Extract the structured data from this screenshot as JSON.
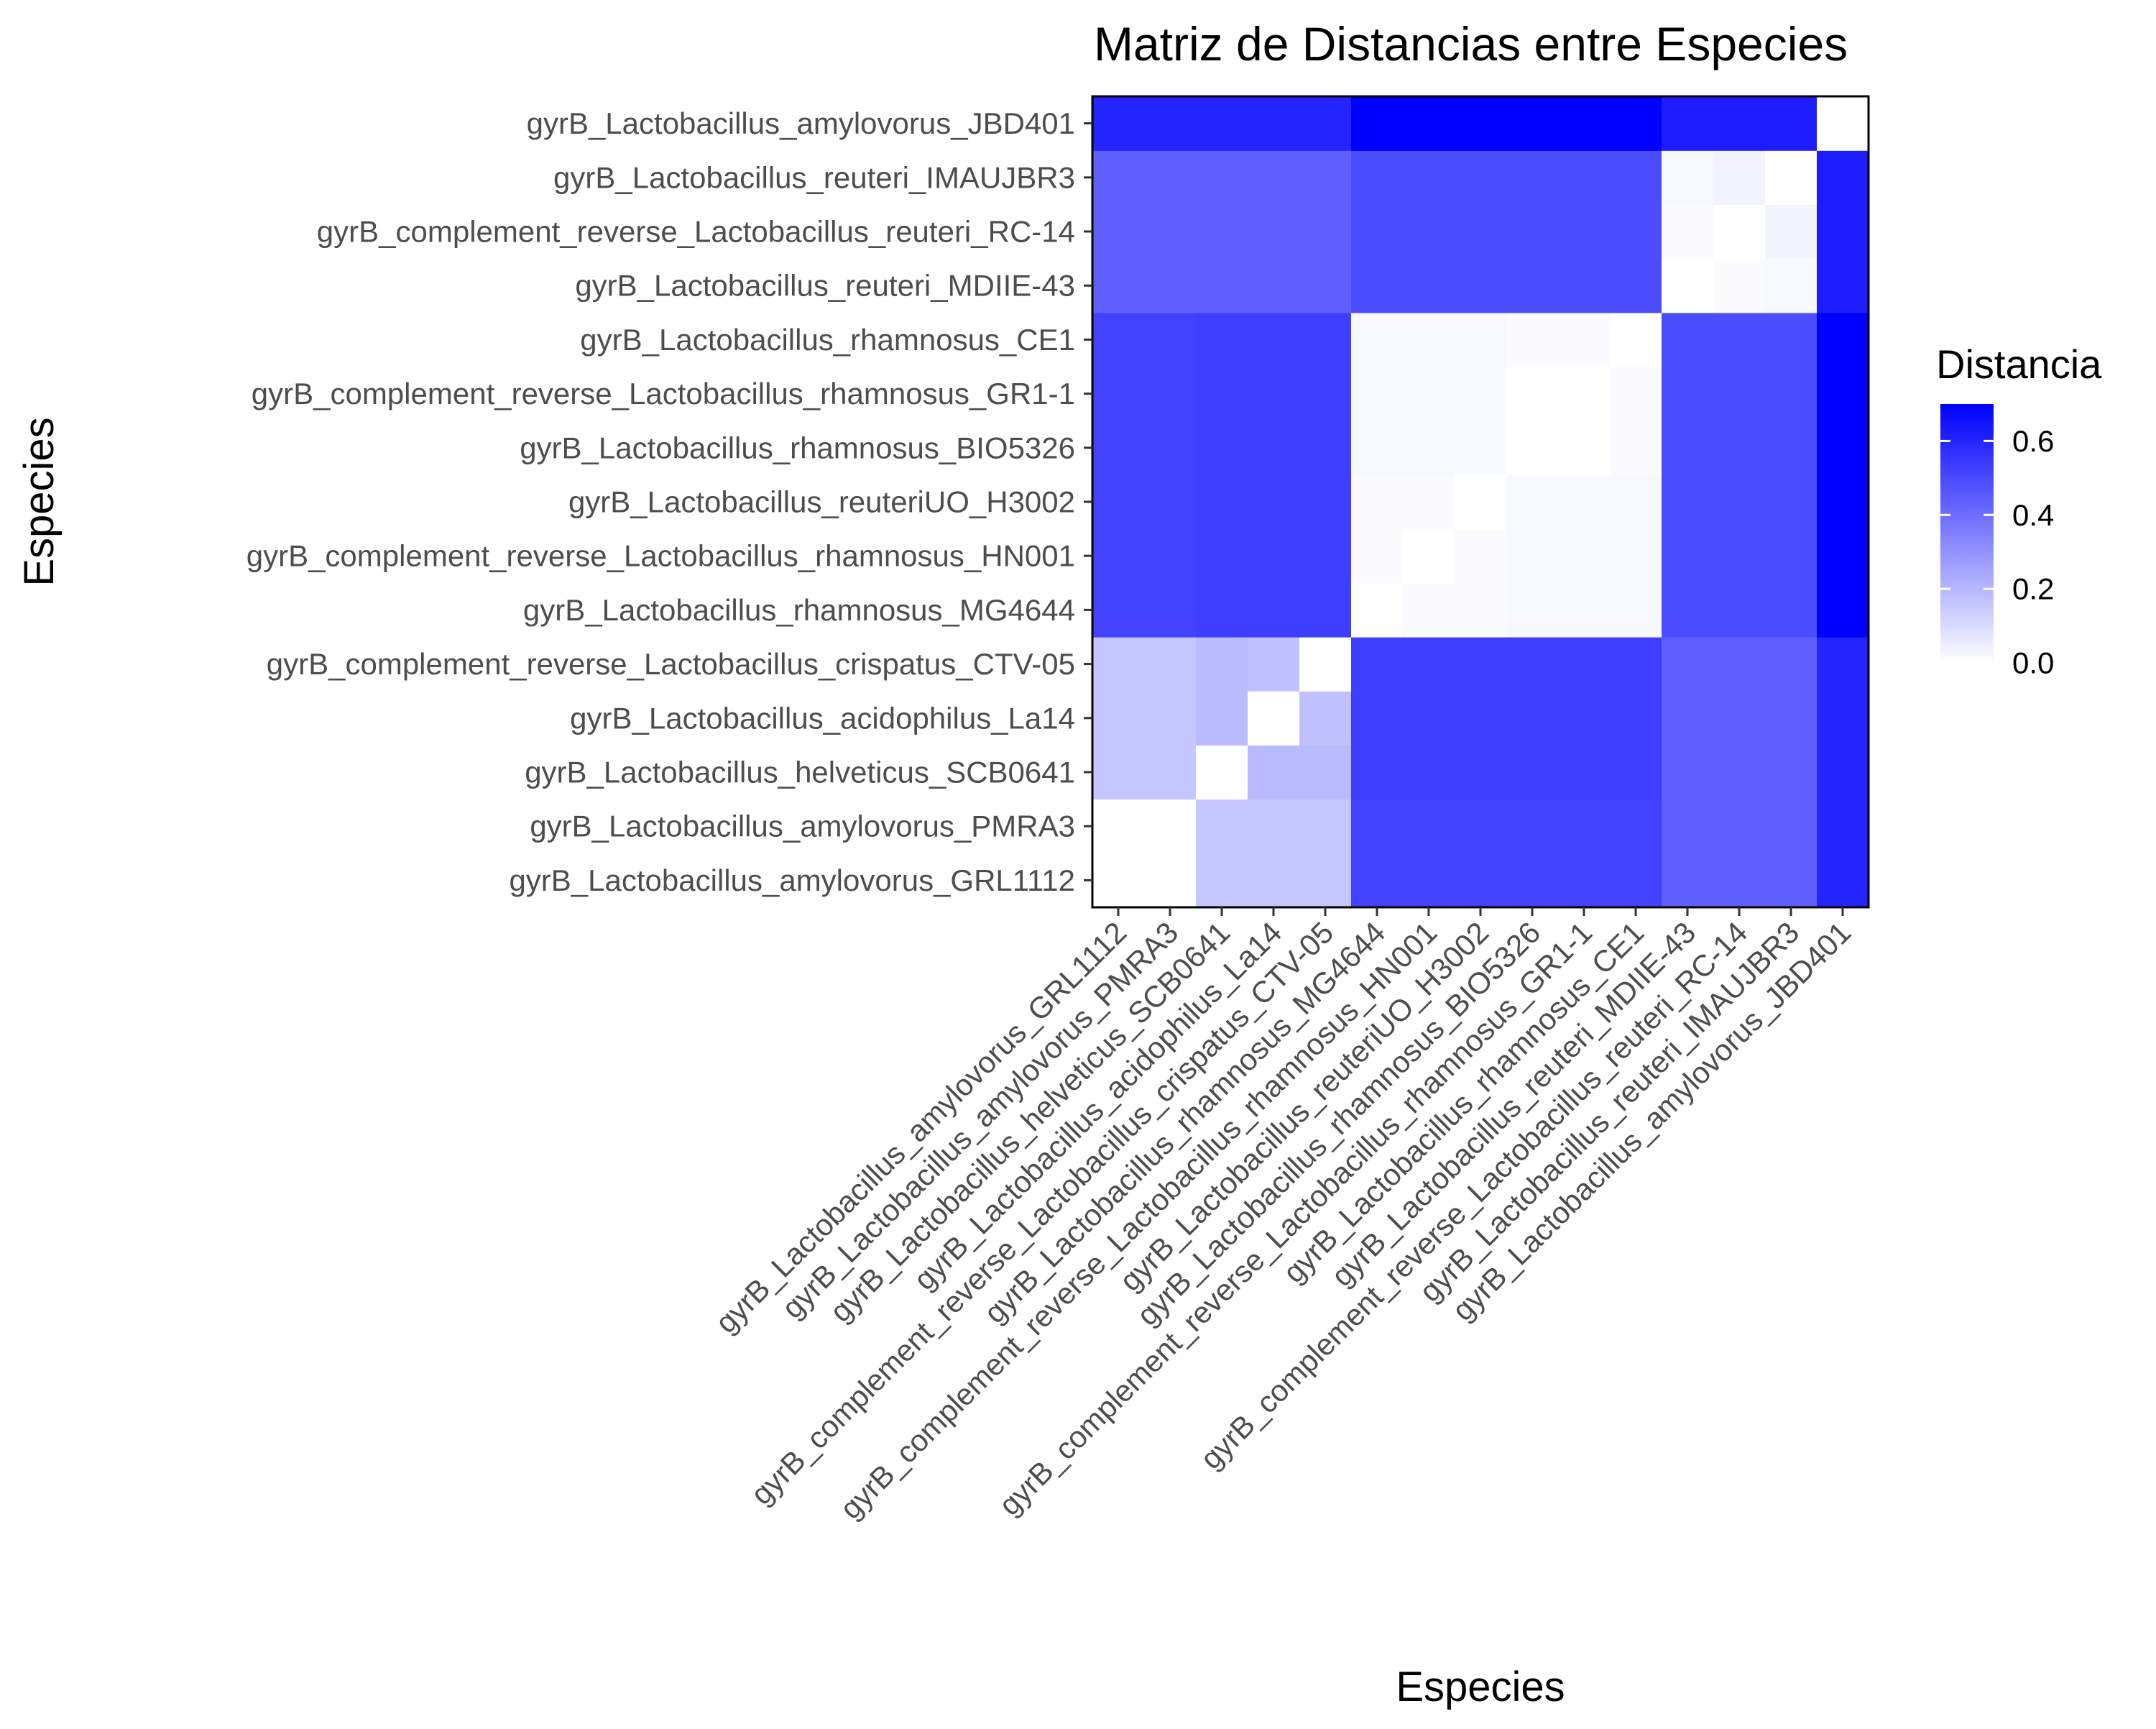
{
  "chart_data": {
    "type": "heatmap",
    "title": "Matriz de Distancias entre Especies",
    "xlabel": "Especies",
    "ylabel": "Especies",
    "species": [
      "gyrB_Lactobacillus_amylovorus_GRL1112",
      "gyrB_Lactobacillus_amylovorus_PMRA3",
      "gyrB_Lactobacillus_helveticus_SCB0641",
      "gyrB_Lactobacillus_acidophilus_La14",
      "gyrB_complement_reverse_Lactobacillus_crispatus_CTV-05",
      "gyrB_Lactobacillus_rhamnosus_MG4644",
      "gyrB_complement_reverse_Lactobacillus_rhamnosus_HN001",
      "gyrB_Lactobacillus_reuteriUO_H3002",
      "gyrB_Lactobacillus_rhamnosus_BIO5326",
      "gyrB_complement_reverse_Lactobacillus_rhamnosus_GR1-1",
      "gyrB_Lactobacillus_rhamnosus_CE1",
      "gyrB_Lactobacillus_reuteri_MDIIE-43",
      "gyrB_complement_reverse_Lactobacillus_reuteri_RC-14",
      "gyrB_Lactobacillus_reuteri_IMAUJBR3",
      "gyrB_Lactobacillus_amylovorus_JBD401"
    ],
    "matrix": [
      [
        0.0,
        0.0,
        0.16,
        0.16,
        0.16,
        0.52,
        0.52,
        0.52,
        0.52,
        0.52,
        0.52,
        0.44,
        0.44,
        0.44,
        0.6
      ],
      [
        0.0,
        0.0,
        0.16,
        0.16,
        0.16,
        0.52,
        0.52,
        0.52,
        0.52,
        0.52,
        0.52,
        0.44,
        0.44,
        0.44,
        0.6
      ],
      [
        0.16,
        0.16,
        0.0,
        0.19,
        0.19,
        0.53,
        0.53,
        0.53,
        0.53,
        0.53,
        0.53,
        0.44,
        0.44,
        0.44,
        0.6
      ],
      [
        0.16,
        0.16,
        0.19,
        0.0,
        0.17,
        0.53,
        0.53,
        0.53,
        0.53,
        0.53,
        0.53,
        0.44,
        0.44,
        0.44,
        0.6
      ],
      [
        0.16,
        0.16,
        0.19,
        0.17,
        0.0,
        0.53,
        0.53,
        0.53,
        0.53,
        0.53,
        0.53,
        0.44,
        0.44,
        0.44,
        0.6
      ],
      [
        0.52,
        0.52,
        0.53,
        0.53,
        0.53,
        0.0,
        0.01,
        0.01,
        0.02,
        0.02,
        0.02,
        0.49,
        0.49,
        0.49,
        0.7
      ],
      [
        0.52,
        0.52,
        0.53,
        0.53,
        0.53,
        0.01,
        0.0,
        0.01,
        0.02,
        0.02,
        0.02,
        0.49,
        0.49,
        0.49,
        0.7
      ],
      [
        0.52,
        0.52,
        0.53,
        0.53,
        0.53,
        0.01,
        0.01,
        0.0,
        0.02,
        0.02,
        0.02,
        0.49,
        0.49,
        0.49,
        0.7
      ],
      [
        0.52,
        0.52,
        0.53,
        0.53,
        0.53,
        0.02,
        0.02,
        0.02,
        0.0,
        0.0,
        0.01,
        0.49,
        0.49,
        0.49,
        0.7
      ],
      [
        0.52,
        0.52,
        0.53,
        0.53,
        0.53,
        0.02,
        0.02,
        0.02,
        0.0,
        0.0,
        0.01,
        0.49,
        0.49,
        0.49,
        0.7
      ],
      [
        0.52,
        0.52,
        0.53,
        0.53,
        0.53,
        0.02,
        0.02,
        0.02,
        0.01,
        0.01,
        0.0,
        0.49,
        0.49,
        0.49,
        0.7
      ],
      [
        0.44,
        0.44,
        0.44,
        0.44,
        0.44,
        0.49,
        0.49,
        0.49,
        0.49,
        0.49,
        0.49,
        0.0,
        0.01,
        0.02,
        0.62
      ],
      [
        0.44,
        0.44,
        0.44,
        0.44,
        0.44,
        0.49,
        0.49,
        0.49,
        0.49,
        0.49,
        0.49,
        0.01,
        0.0,
        0.03,
        0.62
      ],
      [
        0.44,
        0.44,
        0.44,
        0.44,
        0.44,
        0.49,
        0.49,
        0.49,
        0.49,
        0.49,
        0.49,
        0.02,
        0.03,
        0.0,
        0.62
      ],
      [
        0.6,
        0.6,
        0.6,
        0.6,
        0.6,
        0.7,
        0.7,
        0.7,
        0.7,
        0.7,
        0.7,
        0.62,
        0.62,
        0.62,
        0.0
      ]
    ],
    "legend": {
      "title": "Distancia",
      "ticks": [
        0.0,
        0.2,
        0.4,
        0.6
      ],
      "tick_labels": [
        "0.0",
        "0.2",
        "0.4",
        "0.6"
      ],
      "range": [
        0,
        0.7
      ],
      "low_color": "#ffffff",
      "high_color": "#0000ff",
      "placement": "right"
    },
    "grid": false
  }
}
